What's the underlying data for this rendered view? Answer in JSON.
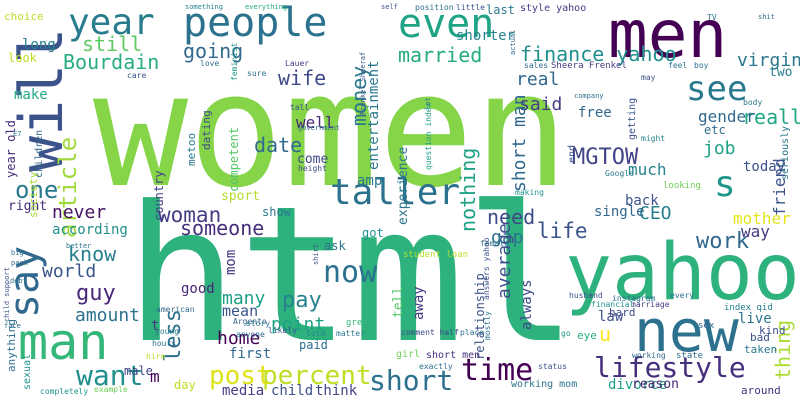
{
  "words": [
    {
      "text": "women",
      "color": "#86d549"
    },
    {
      "text": "html",
      "color": "#2db27d"
    },
    {
      "text": "men",
      "color": "#440154"
    },
    {
      "text": "yahoo",
      "color": "#2db27d"
    },
    {
      "text": "new",
      "color": "#2c728e"
    },
    {
      "text": "people",
      "color": "#2c728e"
    },
    {
      "text": "even",
      "color": "#20a486"
    },
    {
      "text": "will",
      "color": "#3b528b"
    },
    {
      "text": "man",
      "color": "#35b779"
    },
    {
      "text": "say",
      "color": "#31688e"
    },
    {
      "text": "taller",
      "color": "#2c728e"
    },
    {
      "text": "year",
      "color": "#287c8e"
    },
    {
      "text": "see",
      "color": "#2a788e"
    },
    {
      "text": "s",
      "color": "#1f968b"
    },
    {
      "text": "lifestyle",
      "color": "#46307e"
    },
    {
      "text": "short",
      "color": "#2c728e"
    },
    {
      "text": "time",
      "color": "#440154"
    },
    {
      "text": "want",
      "color": "#21908d"
    },
    {
      "text": "now",
      "color": "#2c728e"
    },
    {
      "text": "percent",
      "color": "#bddf26"
    },
    {
      "text": "post",
      "color": "#dde318"
    },
    {
      "text": "finance yahoo",
      "color": "#21908d"
    },
    {
      "text": "married",
      "color": "#25ab82"
    },
    {
      "text": "MGTOW",
      "color": "#414487"
    },
    {
      "text": "woman",
      "color": "#433e85"
    },
    {
      "text": "work",
      "color": "#31688e"
    },
    {
      "text": "one",
      "color": "#2a788e"
    },
    {
      "text": "article",
      "color": "#9fda3a"
    },
    {
      "text": "life",
      "color": "#3b528b"
    },
    {
      "text": "really",
      "color": "#22a785"
    },
    {
      "text": "date",
      "color": "#31688e"
    },
    {
      "text": "pay",
      "color": "#26828e"
    },
    {
      "text": "know",
      "color": "#277f8e"
    },
    {
      "text": "guy",
      "color": "#482878"
    },
    {
      "text": "money",
      "color": "#2a788e"
    },
    {
      "text": "going",
      "color": "#31688e"
    },
    {
      "text": "wife",
      "color": "#3e4989"
    },
    {
      "text": "still",
      "color": "#5ec962"
    },
    {
      "text": "Bourdain",
      "color": "#27ad81"
    },
    {
      "text": "said",
      "color": "#433e85"
    },
    {
      "text": "someone",
      "color": "#472d7b"
    },
    {
      "text": "need",
      "color": "#3e4989"
    },
    {
      "text": "CEO",
      "color": "#277f8e"
    },
    {
      "text": "u",
      "color": "#fde725"
    },
    {
      "text": "job",
      "color": "#1fa187"
    },
    {
      "text": "gap",
      "color": "#2c728e"
    },
    {
      "text": "nothing",
      "color": "#1fa187"
    },
    {
      "text": "point",
      "color": "#1fa187"
    },
    {
      "text": "less",
      "color": "#2c728e"
    },
    {
      "text": "amount",
      "color": "#2c728e"
    },
    {
      "text": "world",
      "color": "#3b528b"
    },
    {
      "text": "home",
      "color": "#440154"
    },
    {
      "text": "many",
      "color": "#1fa187"
    },
    {
      "text": "never",
      "color": "#471365"
    },
    {
      "text": "average",
      "color": "#3b528b"
    },
    {
      "text": "thing",
      "color": "#aadc32"
    },
    {
      "text": "virgin",
      "color": "#2a788e"
    },
    {
      "text": "well",
      "color": "#482878"
    },
    {
      "text": "short man",
      "color": "#31688e"
    },
    {
      "text": "entertainment",
      "color": "#2a788e"
    },
    {
      "text": "long",
      "color": "#25848e"
    },
    {
      "text": "make",
      "color": "#22a785"
    },
    {
      "text": "real",
      "color": "#31688e"
    },
    {
      "text": "shorter",
      "color": "#25848e"
    },
    {
      "text": "last",
      "color": "#2a788e"
    },
    {
      "text": "style yahoo",
      "color": "#443a83"
    },
    {
      "text": "much",
      "color": "#26828e"
    },
    {
      "text": "friend",
      "color": "#3b528b"
    },
    {
      "text": "mother",
      "color": "#e5e419"
    },
    {
      "text": "way",
      "color": "#443a83"
    },
    {
      "text": "two",
      "color": "#277f8e"
    },
    {
      "text": "gender",
      "color": "#31688e"
    },
    {
      "text": "etc",
      "color": "#2e6e8e"
    },
    {
      "text": "today",
      "color": "#3b528b"
    },
    {
      "text": "free",
      "color": "#31688e"
    },
    {
      "text": "look",
      "color": "#c2df23"
    },
    {
      "text": "choice",
      "color": "#b8de29"
    },
    {
      "text": "year old",
      "color": "#472c7a"
    },
    {
      "text": "according",
      "color": "#21908d"
    },
    {
      "text": "right",
      "color": "#472d7b"
    },
    {
      "text": "society",
      "color": "#a5db36"
    },
    {
      "text": "children",
      "color": "#31688e"
    },
    {
      "text": "sport",
      "color": "#b2dd2d"
    },
    {
      "text": "country",
      "color": "#433e85"
    },
    {
      "text": "competent",
      "color": "#54c568"
    },
    {
      "text": "dating",
      "color": "#3e4a89"
    },
    {
      "text": "metoo",
      "color": "#2a788e"
    },
    {
      "text": "mean",
      "color": "#39568c"
    },
    {
      "text": "good",
      "color": "#482878"
    },
    {
      "text": "mom",
      "color": "#46337f"
    },
    {
      "text": "first",
      "color": "#31688e"
    },
    {
      "text": "child",
      "color": "#3b528b"
    },
    {
      "text": "think",
      "color": "#414487"
    },
    {
      "text": "media",
      "color": "#433e85"
    },
    {
      "text": "day",
      "color": "#bddf26"
    },
    {
      "text": "male",
      "color": "#414487"
    },
    {
      "text": "m",
      "color": "#440154"
    },
    {
      "text": "t",
      "color": "#443983"
    },
    {
      "text": "paid",
      "color": "#2e6e8e"
    },
    {
      "text": "amp",
      "color": "#2a788e"
    },
    {
      "text": "come",
      "color": "#3e4a89"
    },
    {
      "text": "show",
      "color": "#2a788e"
    },
    {
      "text": "ask",
      "color": "#2c728e"
    },
    {
      "text": "got",
      "color": "#1f948c"
    },
    {
      "text": "tell",
      "color": "#52c569"
    },
    {
      "text": "away",
      "color": "#443a83"
    },
    {
      "text": "experience",
      "color": "#2a788e"
    },
    {
      "text": "relationship",
      "color": "#3b528b"
    },
    {
      "text": "always",
      "color": "#3e4989"
    },
    {
      "text": "law",
      "color": "#3b528b"
    },
    {
      "text": "back",
      "color": "#3b528b"
    },
    {
      "text": "single",
      "color": "#31688e"
    },
    {
      "text": "live",
      "color": "#2c728e"
    },
    {
      "text": "divorce",
      "color": "#1f9e89"
    },
    {
      "text": "reason",
      "color": "#482475"
    },
    {
      "text": "kind",
      "color": "#3b528b"
    },
    {
      "text": "hard",
      "color": "#3e4a89"
    },
    {
      "text": "eye",
      "color": "#26ad81"
    },
    {
      "text": "sexual",
      "color": "#1f948c"
    },
    {
      "text": "anything",
      "color": "#2c728e"
    },
    {
      "text": "completely",
      "color": "#1f968b"
    },
    {
      "text": "example",
      "color": "#6ece58"
    },
    {
      "text": "working mom",
      "color": "#2c728e"
    },
    {
      "text": "short men",
      "color": "#46307e"
    },
    {
      "text": "girl",
      "color": "#70cf57"
    },
    {
      "text": "status",
      "color": "#3b528b"
    },
    {
      "text": "exactly",
      "color": "#2c728e"
    },
    {
      "text": "working",
      "color": "#31688e"
    },
    {
      "text": "around",
      "color": "#46337f"
    },
    {
      "text": "taken",
      "color": "#2a788e"
    },
    {
      "text": "bad",
      "color": "#3b528b"
    },
    {
      "text": "state",
      "color": "#31688e"
    },
    {
      "text": "hire",
      "color": "#b8de29"
    },
    {
      "text": "hours",
      "color": "#2c728e"
    },
    {
      "text": "told",
      "color": "#26818e"
    },
    {
      "text": "matter",
      "color": "#2a788e"
    },
    {
      "text": "Argento",
      "color": "#33638d"
    },
    {
      "text": "anyone",
      "color": "#2c728e"
    },
    {
      "text": "likely",
      "color": "#3b528b"
    },
    {
      "text": "story",
      "color": "#2a788e"
    },
    {
      "text": "great",
      "color": "#35b779"
    },
    {
      "text": "american",
      "color": "#31688e"
    },
    {
      "text": "young",
      "color": "#2a788e"
    },
    {
      "text": "comment half",
      "color": "#3e4a89"
    },
    {
      "text": "place",
      "color": "#2e6e8e"
    },
    {
      "text": "husband",
      "color": "#3b528b"
    },
    {
      "text": "marriage",
      "color": "#433e85"
    },
    {
      "text": "every",
      "color": "#2c728e"
    },
    {
      "text": "instagram",
      "color": "#2c728e"
    },
    {
      "text": "sex",
      "color": "#31688e"
    },
    {
      "text": "index qid",
      "color": "#277f8e"
    },
    {
      "text": "financial",
      "color": "#20928c"
    },
    {
      "text": "student loan",
      "color": "#b5de2b"
    },
    {
      "text": "female",
      "color": "#2e6e8e"
    },
    {
      "text": "making",
      "color": "#1f968b"
    },
    {
      "text": "looking",
      "color": "#6ece58"
    },
    {
      "text": "Google",
      "color": "#287d8e"
    },
    {
      "text": "company",
      "color": "#2d708e"
    },
    {
      "text": "question index",
      "color": "#1f9e89"
    },
    {
      "text": "end",
      "color": "#3b528b"
    },
    {
      "text": "body",
      "color": "#2a788e"
    },
    {
      "text": "seriously",
      "color": "#2a788e"
    },
    {
      "text": "getting",
      "color": "#3b528b"
    },
    {
      "text": "might",
      "color": "#25848e"
    },
    {
      "text": "tall",
      "color": "#3b528b"
    },
    {
      "text": "government",
      "color": "#31688e"
    },
    {
      "text": "height",
      "color": "#3e4a89"
    },
    {
      "text": "sales",
      "color": "#2e6e8e"
    },
    {
      "text": "Sheera Frenkel",
      "color": "#433e85"
    },
    {
      "text": "Frenkel Sheeraf",
      "color": "#39568c"
    },
    {
      "text": "actual",
      "color": "#31688e"
    },
    {
      "text": "Lauer",
      "color": "#443983"
    },
    {
      "text": "sure",
      "color": "#2c728e"
    },
    {
      "text": "feminist",
      "color": "#1f968b"
    },
    {
      "text": "love",
      "color": "#2c728e"
    },
    {
      "text": "care",
      "color": "#3b528b"
    },
    {
      "text": "feel",
      "color": "#2c728e"
    },
    {
      "text": "boy",
      "color": "#2d708e"
    },
    {
      "text": "may",
      "color": "#3b528b"
    },
    {
      "text": "TV",
      "color": "#2c728e"
    },
    {
      "text": "shit",
      "color": "#2c728e"
    },
    {
      "text": "something",
      "color": "#25848e"
    },
    {
      "text": "everything",
      "color": "#27ad81"
    },
    {
      "text": "self",
      "color": "#3b528b"
    },
    {
      "text": "position",
      "color": "#2c728e"
    },
    {
      "text": "little",
      "color": "#3b528b"
    },
    {
      "text": "better",
      "color": "#2c728e"
    },
    {
      "text": "pack",
      "color": "#2c728e"
    },
    {
      "text": "big",
      "color": "#2c728e"
    },
    {
      "text": "debt",
      "color": "#2c728e"
    },
    {
      "text": "child support",
      "color": "#3b528b"
    },
    {
      "text": "face",
      "color": "#2c728e"
    },
    {
      "text": "E7",
      "color": "#2c728e"
    },
    {
      "text": "lot",
      "color": "#2a788e"
    },
    {
      "text": "go",
      "color": "#1f968b"
    },
    {
      "text": "shirt",
      "color": "#3b528b"
    },
    {
      "text": "answers yahoo",
      "color": "#3b528b"
    },
    {
      "text": "mostly",
      "color": "#2c728e"
    }
  ]
}
